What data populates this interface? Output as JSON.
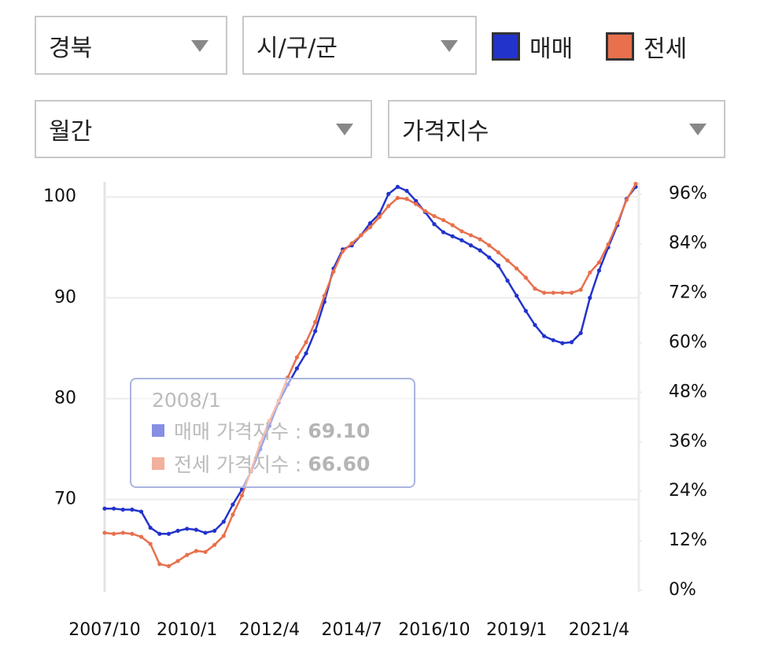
{
  "filters": {
    "region": "경북",
    "district": "시/구/군",
    "period": "월간",
    "metric": "가격지수"
  },
  "tooltip": {
    "title": "2008/1",
    "rows": [
      {
        "label": "매매 가격지수 :",
        "value": "69.10"
      },
      {
        "label": "전세 가격지수 :",
        "value": "66.60"
      }
    ]
  },
  "chart_data": {
    "type": "line",
    "categories": [
      "2007/10",
      null,
      null,
      null,
      null,
      null,
      null,
      null,
      null,
      "2010/1",
      null,
      null,
      null,
      null,
      null,
      null,
      null,
      null,
      "2012/4",
      null,
      null,
      null,
      null,
      null,
      null,
      null,
      null,
      "2014/7",
      null,
      null,
      null,
      null,
      null,
      null,
      null,
      null,
      "2016/10",
      null,
      null,
      null,
      null,
      null,
      null,
      null,
      null,
      "2019/1",
      null,
      null,
      null,
      null,
      null,
      null,
      null,
      null,
      "2021/4",
      null,
      null,
      null,
      null
    ],
    "series": [
      {
        "name": "매매",
        "color": "#2233cc",
        "values": [
          69.1,
          69.1,
          69.0,
          69.0,
          68.8,
          67.2,
          66.6,
          66.6,
          66.9,
          67.1,
          67.0,
          66.7,
          66.9,
          67.8,
          69.5,
          71.0,
          72.8,
          75.0,
          77.3,
          79.6,
          81.4,
          83.0,
          84.5,
          86.7,
          89.6,
          92.9,
          94.8,
          95.2,
          96.2,
          97.4,
          98.3,
          100.3,
          101.0,
          100.6,
          99.6,
          98.5,
          97.3,
          96.5,
          96.1,
          95.7,
          95.2,
          94.7,
          94.0,
          93.2,
          91.7,
          90.2,
          88.7,
          87.3,
          86.2,
          85.8,
          85.5,
          85.6,
          86.5,
          90.0,
          92.7,
          95.0,
          97.2,
          99.8,
          101.0
        ]
      },
      {
        "name": "전세",
        "color": "#e8704d",
        "values": [
          66.7,
          66.6,
          66.7,
          66.6,
          66.3,
          65.6,
          63.6,
          63.4,
          63.9,
          64.5,
          64.9,
          64.8,
          65.5,
          66.4,
          68.5,
          70.4,
          72.9,
          75.6,
          77.8,
          79.8,
          82.1,
          84.1,
          85.6,
          87.6,
          90.2,
          92.6,
          94.6,
          95.4,
          96.2,
          97.0,
          98.0,
          99.1,
          99.9,
          99.8,
          99.3,
          98.6,
          98.1,
          97.7,
          97.2,
          96.6,
          96.2,
          95.8,
          95.2,
          94.5,
          93.7,
          92.9,
          92.0,
          90.9,
          90.5,
          90.5,
          90.5,
          90.5,
          90.8,
          92.5,
          93.5,
          95.3,
          97.4,
          99.7,
          101.3
        ]
      }
    ],
    "ylim": [
      61,
      101.5
    ],
    "yticks": [
      70,
      80,
      90,
      100
    ],
    "y2lim": [
      0,
      99
    ],
    "y2ticks": [
      {
        "value": 0,
        "label": "0%"
      },
      {
        "value": 12,
        "label": "12%"
      },
      {
        "value": 24,
        "label": "24%"
      },
      {
        "value": 36,
        "label": "36%"
      },
      {
        "value": 48,
        "label": "48%"
      },
      {
        "value": 60,
        "label": "60%"
      },
      {
        "value": 72,
        "label": "72%"
      },
      {
        "value": 84,
        "label": "84%"
      },
      {
        "value": 96,
        "label": "96%"
      }
    ],
    "grid": true
  }
}
